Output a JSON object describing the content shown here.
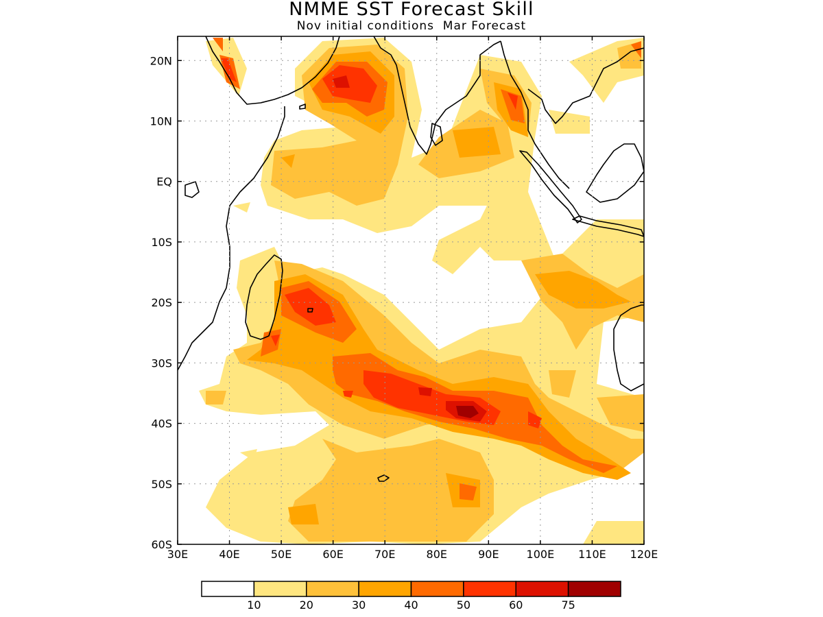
{
  "title": "NMME SST Forecast Skill",
  "subtitle": "Nov initial conditions  Mar Forecast",
  "map": {
    "lon_range": [
      30,
      120
    ],
    "lat_range": [
      -60,
      24
    ],
    "lon_ticks": [
      "30E",
      "40E",
      "50E",
      "60E",
      "70E",
      "80E",
      "90E",
      "100E",
      "110E",
      "120E"
    ],
    "lat_ticks": [
      "20N",
      "10N",
      "EQ",
      "10S",
      "20S",
      "30S",
      "40S",
      "50S",
      "60S"
    ],
    "grid": "dotted"
  },
  "colorbar": {
    "labels": [
      "10",
      "20",
      "30",
      "40",
      "50",
      "60",
      "75"
    ],
    "colors": [
      "#ffffff",
      "#ffe680",
      "#ffc13a",
      "#ffa500",
      "#ff6a00",
      "#ff3300",
      "#dd1100",
      "#a00000"
    ]
  }
}
